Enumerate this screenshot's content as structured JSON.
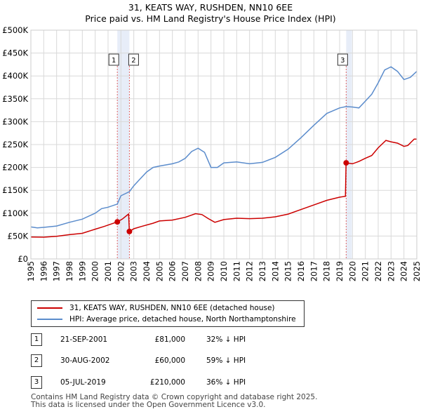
{
  "title_line1": "31, KEATS WAY, RUSHDEN, NN10 6EE",
  "title_line2": "Price paid vs. HM Land Registry's House Price Index (HPI)",
  "chart_data": {
    "type": "line",
    "title": "31, KEATS WAY, RUSHDEN, NN10 6EE",
    "subtitle": "Price paid vs. HM Land Registry's House Price Index (HPI)",
    "xlabel": "",
    "ylabel": "",
    "xlim": [
      1995,
      2025
    ],
    "ylim": [
      0,
      500000
    ],
    "grid": true,
    "y_ticks": [
      {
        "value": 0,
        "label": "£0"
      },
      {
        "value": 50000,
        "label": "£50K"
      },
      {
        "value": 100000,
        "label": "£100K"
      },
      {
        "value": 150000,
        "label": "£150K"
      },
      {
        "value": 200000,
        "label": "£200K"
      },
      {
        "value": 250000,
        "label": "£250K"
      },
      {
        "value": 300000,
        "label": "£300K"
      },
      {
        "value": 350000,
        "label": "£350K"
      },
      {
        "value": 400000,
        "label": "£400K"
      },
      {
        "value": 450000,
        "label": "£450K"
      },
      {
        "value": 500000,
        "label": "£500K"
      }
    ],
    "x_ticks": [
      "1995",
      "1996",
      "1997",
      "1998",
      "1999",
      "2000",
      "2001",
      "2002",
      "2003",
      "2004",
      "2005",
      "2006",
      "2007",
      "2008",
      "2009",
      "2010",
      "2011",
      "2012",
      "2013",
      "2014",
      "2015",
      "2016",
      "2017",
      "2018",
      "2019",
      "2020",
      "2021",
      "2022",
      "2023",
      "2024",
      "2025"
    ],
    "series": [
      {
        "name": "31, KEATS WAY, RUSHDEN, NN10 6EE (detached house)",
        "color": "#cc0000",
        "points": [
          [
            1995.0,
            48000
          ],
          [
            1996.0,
            47500
          ],
          [
            1997.0,
            49500
          ],
          [
            1998.0,
            53000
          ],
          [
            1999.0,
            56000
          ],
          [
            2000.0,
            65000
          ],
          [
            2000.7,
            71000
          ],
          [
            2001.72,
            81000
          ],
          [
            2002.1,
            87000
          ],
          [
            2002.5,
            96000
          ],
          [
            2002.6,
            98000
          ],
          [
            2002.66,
            60000
          ],
          [
            2003.0,
            66000
          ],
          [
            2003.6,
            71000
          ],
          [
            2004.5,
            78000
          ],
          [
            2005.0,
            83000
          ],
          [
            2006.0,
            85000
          ],
          [
            2007.0,
            91000
          ],
          [
            2007.8,
            99000
          ],
          [
            2008.3,
            97000
          ],
          [
            2008.8,
            88000
          ],
          [
            2009.3,
            80000
          ],
          [
            2010.0,
            86000
          ],
          [
            2011.0,
            89000
          ],
          [
            2012.0,
            88000
          ],
          [
            2013.0,
            89000
          ],
          [
            2014.0,
            92000
          ],
          [
            2015.0,
            98000
          ],
          [
            2016.0,
            108000
          ],
          [
            2017.0,
            118000
          ],
          [
            2018.0,
            128000
          ],
          [
            2019.0,
            135000
          ],
          [
            2019.45,
            137000
          ],
          [
            2019.5,
            210000
          ],
          [
            2020.0,
            208000
          ],
          [
            2020.5,
            213000
          ],
          [
            2021.0,
            220000
          ],
          [
            2021.5,
            226000
          ],
          [
            2022.0,
            243000
          ],
          [
            2022.6,
            259000
          ],
          [
            2023.0,
            256000
          ],
          [
            2023.5,
            253000
          ],
          [
            2024.0,
            246000
          ],
          [
            2024.3,
            248000
          ],
          [
            2024.8,
            262000
          ],
          [
            2025.0,
            262000
          ]
        ]
      },
      {
        "name": "HPI: Average price, detached house, North Northamptonshire",
        "color": "#5b8ccc",
        "points": [
          [
            1995.0,
            70000
          ],
          [
            1995.5,
            68000
          ],
          [
            1996.0,
            69000
          ],
          [
            1997.0,
            72000
          ],
          [
            1998.0,
            80000
          ],
          [
            1999.0,
            87000
          ],
          [
            2000.0,
            100000
          ],
          [
            2000.5,
            110000
          ],
          [
            2001.0,
            113000
          ],
          [
            2001.72,
            120000
          ],
          [
            2002.0,
            138000
          ],
          [
            2002.66,
            147000
          ],
          [
            2003.0,
            160000
          ],
          [
            2003.5,
            175000
          ],
          [
            2004.0,
            190000
          ],
          [
            2004.5,
            200000
          ],
          [
            2005.0,
            203000
          ],
          [
            2006.0,
            208000
          ],
          [
            2006.5,
            212000
          ],
          [
            2007.0,
            220000
          ],
          [
            2007.5,
            235000
          ],
          [
            2008.0,
            242000
          ],
          [
            2008.5,
            233000
          ],
          [
            2009.0,
            200000
          ],
          [
            2009.5,
            200000
          ],
          [
            2010.0,
            210000
          ],
          [
            2011.0,
            212000
          ],
          [
            2012.0,
            208000
          ],
          [
            2013.0,
            211000
          ],
          [
            2014.0,
            222000
          ],
          [
            2015.0,
            240000
          ],
          [
            2016.0,
            265000
          ],
          [
            2017.0,
            292000
          ],
          [
            2018.0,
            318000
          ],
          [
            2019.0,
            330000
          ],
          [
            2019.5,
            333000
          ],
          [
            2020.0,
            332000
          ],
          [
            2020.5,
            330000
          ],
          [
            2021.0,
            345000
          ],
          [
            2021.5,
            360000
          ],
          [
            2022.0,
            385000
          ],
          [
            2022.5,
            413000
          ],
          [
            2023.0,
            420000
          ],
          [
            2023.5,
            410000
          ],
          [
            2024.0,
            392000
          ],
          [
            2024.5,
            397000
          ],
          [
            2025.0,
            410000
          ]
        ]
      }
    ],
    "sales": [
      {
        "id": "1",
        "x": 2001.72,
        "price": 81000
      },
      {
        "id": "2",
        "x": 2002.66,
        "price": 60000
      },
      {
        "id": "3",
        "x": 2019.51,
        "price": 210000
      }
    ],
    "shaded_regions": [
      [
        2001.72,
        2002.66
      ],
      [
        2019.51,
        2019.95
      ]
    ]
  },
  "legend": {
    "entries": [
      {
        "label": "31, KEATS WAY, RUSHDEN, NN10 6EE (detached house)",
        "color": "#cc0000"
      },
      {
        "label": "HPI: Average price, detached house, North Northamptonshire",
        "color": "#5b8ccc"
      }
    ]
  },
  "transactions": [
    {
      "num": "1",
      "date": "21-SEP-2001",
      "price": "£81,000",
      "hpi": "32% ↓ HPI"
    },
    {
      "num": "2",
      "date": "30-AUG-2002",
      "price": "£60,000",
      "hpi": "59% ↓ HPI"
    },
    {
      "num": "3",
      "date": "05-JUL-2019",
      "price": "£210,000",
      "hpi": "36% ↓ HPI"
    }
  ],
  "footer": {
    "line1": "Contains HM Land Registry data © Crown copyright and database right 2025.",
    "line2": "This data is licensed under the Open Government Licence v3.0."
  }
}
